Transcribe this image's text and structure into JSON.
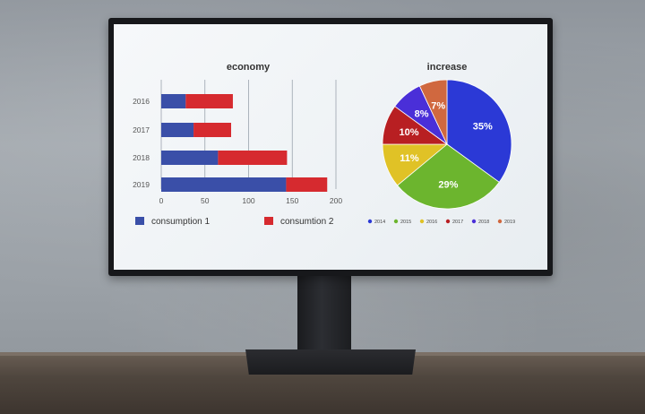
{
  "chart_data": [
    {
      "type": "bar",
      "orientation": "horizontal",
      "stacked": true,
      "title": "economy",
      "categories": [
        "2016",
        "2017",
        "2018",
        "2019"
      ],
      "series": [
        {
          "name": "consumption  1",
          "values": [
            28,
            37,
            65,
            143
          ],
          "color": "#3a4fa8"
        },
        {
          "name": "consumtion 2",
          "values": [
            54,
            43,
            79,
            47
          ],
          "color": "#d62a2f"
        }
      ],
      "x_ticks": [
        "0",
        "50",
        "100",
        "150",
        "200"
      ],
      "xlim": [
        0,
        200
      ],
      "grid": "vertical",
      "legend_position": "bottom"
    },
    {
      "type": "pie",
      "title": "increase",
      "slices": [
        {
          "label": "2014",
          "value": 35,
          "text": "35%",
          "color": "#2b39d6"
        },
        {
          "label": "2015",
          "value": 29,
          "text": "29%",
          "color": "#6cb52e"
        },
        {
          "label": "2016",
          "value": 11,
          "text": "11%",
          "color": "#e0c226"
        },
        {
          "label": "2017",
          "value": 10,
          "text": "10%",
          "color": "#b81f22"
        },
        {
          "label": "2018",
          "value": 8,
          "text": "8%",
          "color": "#4a2fd8"
        },
        {
          "label": "2019",
          "value": 7,
          "text": "7%",
          "color": "#d0683f"
        }
      ],
      "legend_position": "bottom"
    }
  ]
}
